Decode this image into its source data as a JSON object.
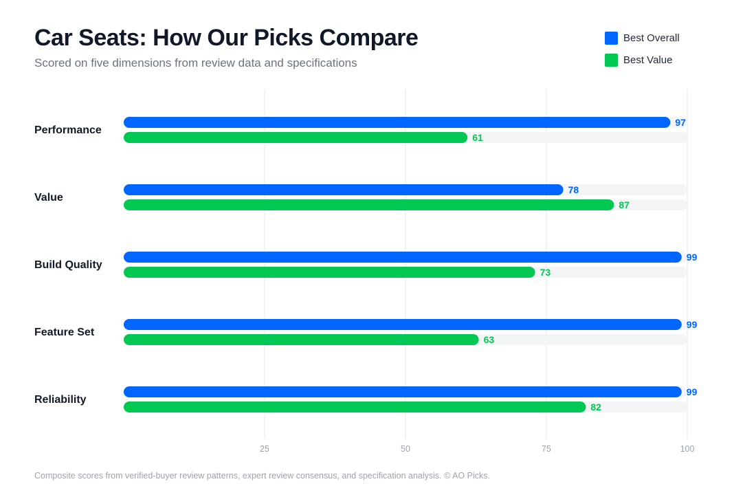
{
  "title": "Car Seats: How Our Picks Compare",
  "subtitle": "Scored on five dimensions from review data and specifications",
  "footnote": "Composite scores from verified-buyer review patterns, expert review consensus, and specification analysis. © AO Picks.",
  "legend": [
    {
      "name": "Best Overall",
      "color": "#0066ff"
    },
    {
      "name": "Best Value",
      "color": "#00c853"
    }
  ],
  "chart_data": {
    "type": "bar",
    "orientation": "horizontal",
    "title": "Car Seats: How Our Picks Compare",
    "subtitle": "Scored on five dimensions from review data and specifications",
    "categories": [
      "Performance",
      "Value",
      "Build Quality",
      "Feature Set",
      "Reliability"
    ],
    "series": [
      {
        "name": "Best Overall",
        "color": "#0066ff",
        "values": [
          97,
          78,
          99,
          99,
          99
        ]
      },
      {
        "name": "Best Value",
        "color": "#00c853",
        "values": [
          61,
          87,
          73,
          63,
          82
        ]
      }
    ],
    "xlim": [
      0,
      100
    ],
    "xticks": [
      25,
      50,
      75,
      100
    ],
    "grid": true,
    "legend_position": "top-right",
    "track_color": "#f3f4f6",
    "grid_color": "#e5e7eb"
  }
}
